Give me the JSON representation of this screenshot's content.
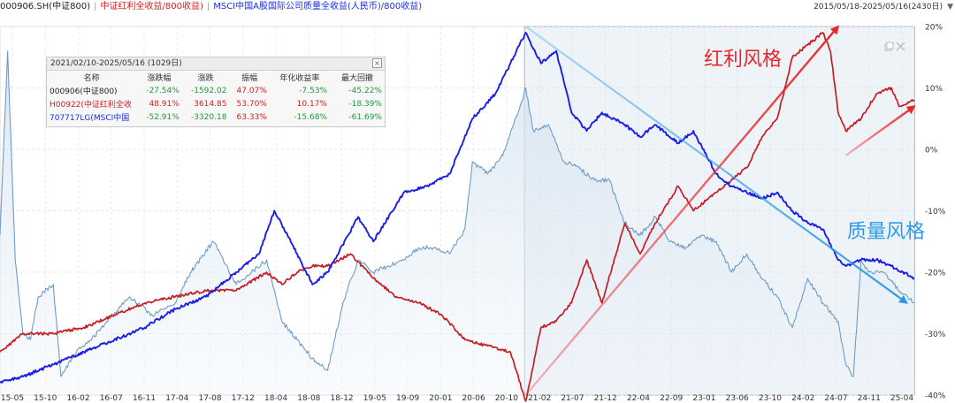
{
  "header": {
    "series": [
      "000906.SH(中证800)",
      "中证红利全收益/800收益)",
      "MSCI中国A股国际公司质量全收益(人民币)/800收益)"
    ],
    "separator": "|",
    "date_range": "2015/05/18-2025/05/16(2430日)",
    "dropdown_glyph": "▼"
  },
  "stats_panel": {
    "title": "2021/02/10-2025/05/16 (1029日)",
    "close_glyph": "×",
    "headers": [
      "名称",
      "涨跌幅",
      "涨跌",
      "振幅",
      "年化收益率",
      "最大回撤"
    ],
    "rows": [
      [
        "000906(中证800)",
        "-27.54%",
        "-1592.02",
        "47.07%",
        "-7.53%",
        "-45.22%"
      ],
      [
        "H00922(中证红利全收",
        "48.91%",
        "3614.85",
        "53.70%",
        "10.17%",
        "-18.39%"
      ],
      [
        "707717LG(MSCI中国",
        "-52.91%",
        "-3320.18",
        "63.33%",
        "-15.68%",
        "-61.69%"
      ]
    ]
  },
  "annotations": {
    "dividend_style": "红利风格",
    "quality_style": "质量风格"
  },
  "colors": {
    "index": "#6f9bc6",
    "dividend": "#c41e24",
    "quality": "#1a1ee6",
    "trend_red": "#e8262b",
    "trend_blue": "#2b9be6",
    "grid": "#dcdcdc"
  },
  "chart_data": {
    "type": "line",
    "title": "",
    "xlabel": "",
    "ylabel": "",
    "ylim": [
      -40,
      20
    ],
    "y_ticks": [
      "20%",
      "10%",
      "0%",
      "-10%",
      "-20%",
      "-30%",
      "-40%"
    ],
    "x_ticks": [
      "15-05",
      "15-10",
      "16-02",
      "16-07",
      "16-11",
      "17-04",
      "17-08",
      "17-12",
      "18-04",
      "18-08",
      "18-12",
      "19-05",
      "19-09",
      "20-01",
      "20-06",
      "20-10",
      "21-02",
      "21-07",
      "21-12",
      "22-04",
      "22-09",
      "23-01",
      "23-06",
      "23-10",
      "24-02",
      "24-07",
      "24-11",
      "25-04"
    ],
    "x_range": [
      "2015-05",
      "2025-05"
    ],
    "selection_range": [
      "2021-02-10",
      "2025-05-16"
    ],
    "grid": true,
    "series": [
      {
        "key": "index",
        "x": [
          "2015-05",
          "2015-06",
          "2015-07",
          "2015-08",
          "2015-09",
          "2015-10",
          "2015-12",
          "2016-01",
          "2016-03",
          "2016-05",
          "2016-07",
          "2016-10",
          "2017-01",
          "2017-04",
          "2017-06",
          "2017-09",
          "2017-12",
          "2018-02",
          "2018-04",
          "2018-06",
          "2018-08",
          "2018-10",
          "2018-12",
          "2019-02",
          "2019-04",
          "2019-06",
          "2019-08",
          "2019-10",
          "2019-12",
          "2020-02",
          "2020-04",
          "2020-06",
          "2020-07",
          "2020-09",
          "2020-11",
          "2021-01",
          "2021-02",
          "2021-03",
          "2021-05",
          "2021-07",
          "2021-09",
          "2021-11",
          "2022-01",
          "2022-03",
          "2022-05",
          "2022-07",
          "2022-09",
          "2022-11",
          "2023-01",
          "2023-03",
          "2023-05",
          "2023-07",
          "2023-09",
          "2023-11",
          "2024-01",
          "2024-03",
          "2024-05",
          "2024-07",
          "2024-08",
          "2024-09",
          "2024-10",
          "2024-11",
          "2025-01",
          "2025-03",
          "2025-05"
        ],
        "values": [
          -14,
          16,
          -18,
          -30,
          -31,
          -24,
          -22,
          -37,
          -33,
          -31,
          -28,
          -24,
          -27,
          -25,
          -20,
          -15,
          -22,
          -20,
          -18,
          -28,
          -31,
          -34,
          -36,
          -25,
          -18,
          -20,
          -19,
          -18,
          -16,
          -16,
          -17,
          -13,
          -2,
          -4,
          -1,
          6,
          10,
          3,
          4,
          -2,
          -3,
          -5,
          -5,
          -12,
          -14,
          -11,
          -15,
          -16,
          -14,
          -15,
          -20,
          -17,
          -21,
          -24,
          -29,
          -21,
          -25,
          -28,
          -35,
          -37,
          -18,
          -20,
          -20,
          -23,
          -25
        ]
      },
      {
        "key": "dividend",
        "x": [
          "2015-05",
          "2015-08",
          "2015-12",
          "2016-04",
          "2016-08",
          "2016-12",
          "2017-04",
          "2017-08",
          "2017-12",
          "2018-04",
          "2018-06",
          "2018-08",
          "2018-10",
          "2018-12",
          "2019-03",
          "2019-06",
          "2019-09",
          "2019-12",
          "2020-03",
          "2020-06",
          "2020-09",
          "2020-12",
          "2021-02",
          "2021-04",
          "2021-06",
          "2021-08",
          "2021-10",
          "2021-12",
          "2022-03",
          "2022-05",
          "2022-07",
          "2022-10",
          "2022-12",
          "2023-03",
          "2023-05",
          "2023-07",
          "2023-09",
          "2023-11",
          "2024-01",
          "2024-03",
          "2024-05",
          "2024-06",
          "2024-07",
          "2024-08",
          "2024-10",
          "2024-12",
          "2025-02",
          "2025-03",
          "2025-05"
        ],
        "values": [
          -33,
          -30,
          -30,
          -29,
          -27,
          -25,
          -24,
          -23,
          -23,
          -20,
          -22,
          -20,
          -19,
          -19,
          -17,
          -21,
          -24,
          -25,
          -27,
          -31,
          -32,
          -33,
          -41,
          -29,
          -28,
          -25,
          -18,
          -25,
          -12,
          -17,
          -12,
          -6,
          -10,
          -7,
          -5,
          -3,
          2,
          5,
          15,
          17,
          19,
          16,
          6,
          3,
          5,
          9,
          10,
          7,
          8
        ]
      },
      {
        "key": "quality",
        "x": [
          "2015-05",
          "2015-08",
          "2015-12",
          "2016-04",
          "2016-08",
          "2016-12",
          "2017-04",
          "2017-08",
          "2017-12",
          "2018-03",
          "2018-05",
          "2018-08",
          "2018-10",
          "2018-12",
          "2019-04",
          "2019-06",
          "2019-10",
          "2020-01",
          "2020-04",
          "2020-07",
          "2020-10",
          "2020-12",
          "2021-02",
          "2021-04",
          "2021-06",
          "2021-08",
          "2021-10",
          "2021-12",
          "2022-03",
          "2022-05",
          "2022-07",
          "2022-10",
          "2022-12",
          "2023-03",
          "2023-05",
          "2023-07",
          "2023-09",
          "2023-11",
          "2024-01",
          "2024-03",
          "2024-05",
          "2024-07",
          "2024-08",
          "2024-10",
          "2024-12",
          "2025-02",
          "2025-05"
        ],
        "values": [
          -38,
          -37,
          -35,
          -33,
          -31,
          -29,
          -26,
          -24,
          -20,
          -17,
          -10,
          -17,
          -22,
          -20,
          -11,
          -15,
          -7,
          -6,
          -4,
          5,
          9,
          14,
          19,
          14,
          16,
          6,
          3,
          6,
          4,
          2,
          4,
          1,
          3,
          -4,
          -6,
          -7,
          -8,
          -7,
          -10,
          -12,
          -13,
          -18,
          -19,
          -18,
          -18,
          -19,
          -21
        ]
      }
    ],
    "trend_lines": [
      {
        "key": "dividend_trend",
        "color": "red",
        "from": [
          "2021-02",
          -40
        ],
        "to": [
          "2024-07",
          20
        ]
      },
      {
        "key": "dividend_trend_recent",
        "color": "red",
        "from": [
          "2024-08",
          -1
        ],
        "to": [
          "2025-05",
          7
        ]
      },
      {
        "key": "quality_trend",
        "color": "blue",
        "from": [
          "2021-02",
          20
        ],
        "to": [
          "2025-04",
          -25
        ]
      }
    ]
  }
}
